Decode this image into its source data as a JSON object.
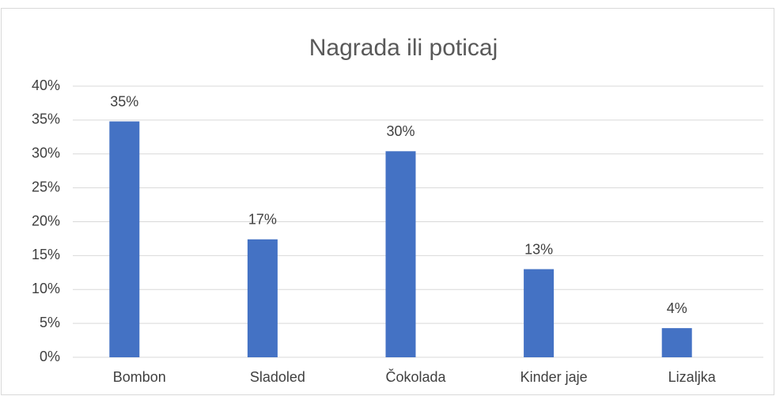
{
  "chart_data": {
    "type": "bar",
    "title": "Nagrada ili poticaj",
    "categories": [
      "Bombon",
      "Sladoled",
      "Čokolada",
      "Kinder jaje",
      "Lizaljka"
    ],
    "values": [
      34.8,
      17.4,
      30.4,
      13.0,
      4.3
    ],
    "value_labels": [
      "35%",
      "17%",
      "30%",
      "13%",
      "4%"
    ],
    "color": "#4472c4",
    "ylim": [
      0,
      40
    ],
    "yticks": [
      {
        "value": 0,
        "label": "0%"
      },
      {
        "value": 5,
        "label": "5%"
      },
      {
        "value": 10,
        "label": "10%"
      },
      {
        "value": 15,
        "label": "15%"
      },
      {
        "value": 20,
        "label": "20%"
      },
      {
        "value": 25,
        "label": "25%"
      },
      {
        "value": 30,
        "label": "30%"
      },
      {
        "value": 35,
        "label": "35%"
      },
      {
        "value": 40,
        "label": "40%"
      }
    ],
    "grid": true
  }
}
